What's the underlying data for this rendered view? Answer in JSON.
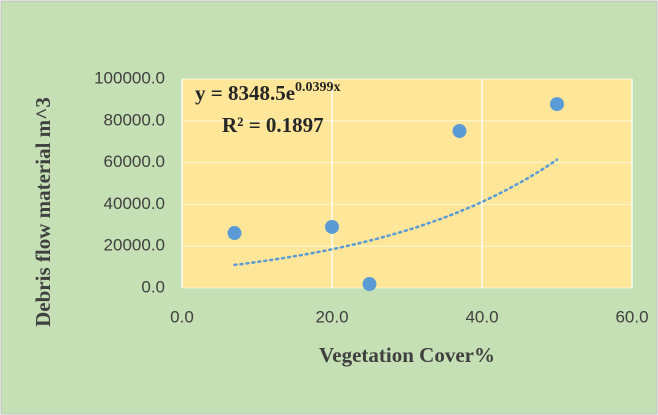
{
  "chart_data": {
    "type": "scatter",
    "x_label": "Vegetation Cover%",
    "y_label": "Debris flow material m^3",
    "x": [
      7,
      20,
      25,
      37,
      50
    ],
    "values": [
      26300,
      29200,
      1900,
      75100,
      88000
    ],
    "color": "#5b9bd5",
    "xlim": [
      0,
      60
    ],
    "xticks": [
      {
        "value": 0,
        "label": "0.0"
      },
      {
        "value": 20,
        "label": "20.0"
      },
      {
        "value": 40,
        "label": "40.0"
      },
      {
        "value": 60,
        "label": "60.0"
      }
    ],
    "ylim": [
      0,
      100000
    ],
    "yticks": [
      {
        "value": 0,
        "label": "0.0"
      },
      {
        "value": 20000,
        "label": "20000.0"
      },
      {
        "value": 40000,
        "label": "40000.0"
      },
      {
        "value": 60000,
        "label": "60000.0"
      },
      {
        "value": 80000,
        "label": "80000.0"
      },
      {
        "value": 100000,
        "label": "100000.0"
      }
    ],
    "grid": true,
    "trendline": {
      "type": "exponential",
      "coefficient": 8348.5,
      "exponent": 0.0399,
      "equation_label": "y = 8348.5e",
      "exponent_label": "0.0399x",
      "r2_label": "R² = 0.1897"
    }
  }
}
